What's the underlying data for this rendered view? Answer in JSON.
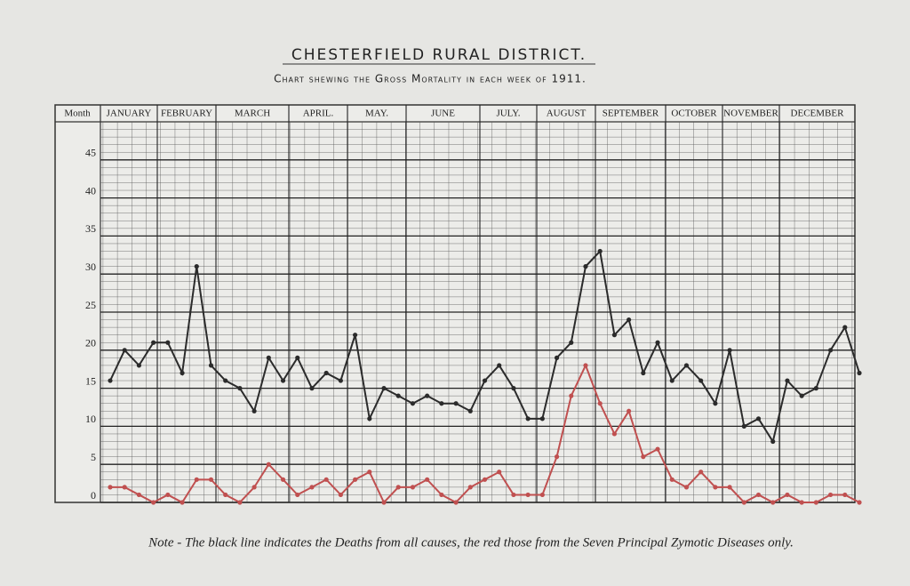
{
  "chart_data": {
    "type": "line",
    "title": "CHESTERFIELD RURAL DISTRICT.",
    "subtitle": "Chart shewing the Gross Mortality in each week of 1911.",
    "x_header": "Month",
    "months": [
      "JANUARY",
      "FEBRUARY",
      "MARCH",
      "APRIL.",
      "MAY.",
      "JUNE",
      "JULY.",
      "AUGUST",
      "SEPTEMBER",
      "OCTOBER",
      "NOVEMBER",
      "DECEMBER"
    ],
    "note": "Note - The black line indicates the Deaths from all causes, the red those from the Seven Principal Zymotic Diseases only.",
    "ylim": [
      0,
      50
    ],
    "yticks": [
      0,
      5,
      10,
      15,
      20,
      25,
      30,
      35,
      40,
      45
    ],
    "grid": true,
    "series": [
      {
        "color": "#2b2b2b",
        "values": [
          16,
          20,
          18,
          21,
          21,
          17,
          31,
          18,
          16,
          15,
          12,
          19,
          16,
          19,
          15,
          17,
          16,
          22,
          11,
          15,
          14,
          13,
          14,
          13,
          13,
          12,
          16,
          18,
          15,
          11,
          11,
          19,
          21,
          31,
          33,
          22,
          24,
          17,
          21,
          16,
          18,
          16,
          13,
          20,
          10,
          11,
          8,
          16,
          14,
          15,
          20,
          23,
          17
        ]
      },
      {
        "color": "#c05050",
        "values": [
          2,
          2,
          1,
          0,
          1,
          0,
          3,
          3,
          1,
          0,
          2,
          5,
          3,
          1,
          2,
          3,
          1,
          3,
          4,
          0,
          2,
          2,
          3,
          1,
          0,
          2,
          3,
          4,
          1,
          1,
          1,
          6,
          14,
          18,
          13,
          9,
          12,
          6,
          7,
          3,
          2,
          4,
          2,
          2,
          0,
          1,
          0,
          1,
          0,
          0,
          1,
          1,
          0
        ]
      }
    ]
  }
}
